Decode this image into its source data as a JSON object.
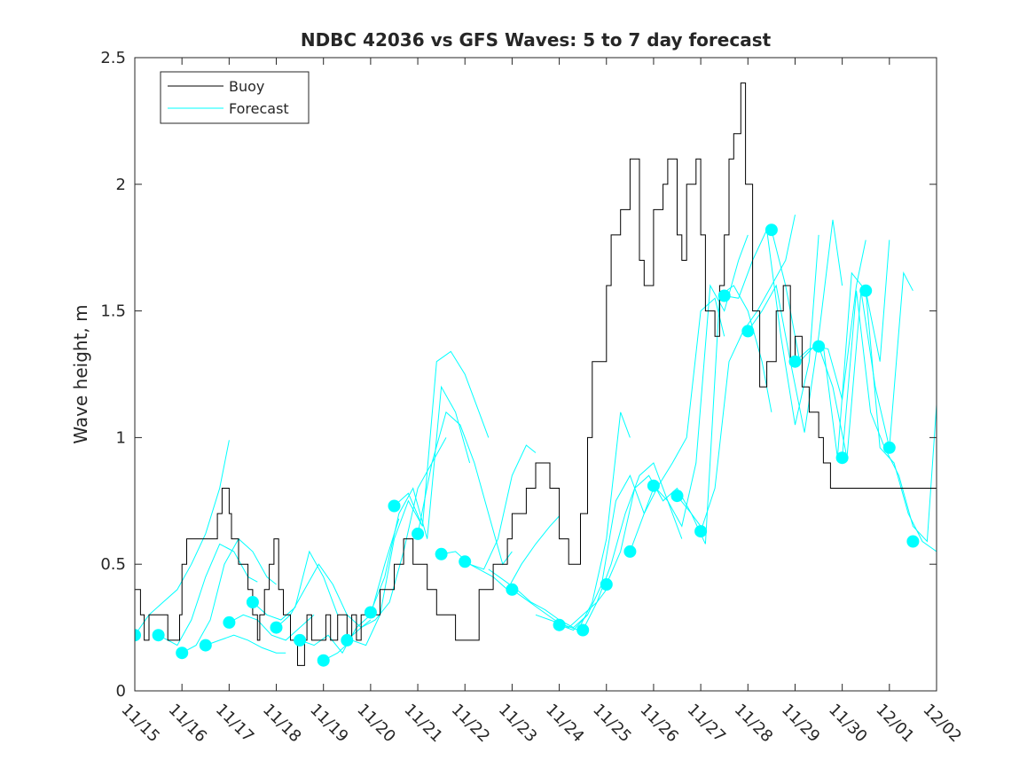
{
  "chart_data": {
    "type": "line",
    "title": "NDBC 42036 vs GFS Waves: 5 to 7 day forecast",
    "xlabel": "",
    "ylabel": "Wave height, m",
    "xlim": [
      0,
      17
    ],
    "ylim": [
      0,
      2.5
    ],
    "x_ticks": [
      0,
      1,
      2,
      3,
      4,
      5,
      6,
      7,
      8,
      9,
      10,
      11,
      12,
      13,
      14,
      15,
      16,
      17
    ],
    "x_tick_labels": [
      "11/15",
      "11/16",
      "11/17",
      "11/18",
      "11/19",
      "11/20",
      "11/21",
      "11/22",
      "11/23",
      "11/24",
      "11/25",
      "11/26",
      "11/27",
      "11/28",
      "11/29",
      "11/30",
      "12/01",
      "12/02"
    ],
    "y_ticks": [
      0,
      0.5,
      1,
      1.5,
      2,
      2.5
    ],
    "y_tick_labels": [
      "0",
      "0.5",
      "1",
      "1.5",
      "2",
      "2.5"
    ],
    "legend": [
      {
        "label": "Buoy",
        "color": "#000000"
      },
      {
        "label": "Forecast",
        "color": "#00ffff"
      }
    ],
    "legend_position": "top-left",
    "colors": {
      "buoy": "#000000",
      "forecast": "#00ffff",
      "axis": "#262626"
    },
    "series": [
      {
        "name": "Buoy",
        "style": "step",
        "x": [
          0,
          0.12,
          0.2,
          0.3,
          0.5,
          0.7,
          0.85,
          0.95,
          1,
          1.1,
          1.2,
          1.4,
          1.6,
          1.75,
          1.85,
          2.0,
          2.05,
          2.2,
          2.4,
          2.5,
          2.6,
          2.65,
          2.75,
          2.85,
          2.95,
          3.05,
          3.15,
          3.3,
          3.45,
          3.6,
          3.65,
          3.75,
          3.85,
          3.95,
          4.05,
          4.15,
          4.3,
          4.4,
          4.5,
          4.6,
          4.7,
          4.8,
          5.0,
          5.2,
          5.5,
          5.7,
          5.9,
          6.2,
          6.4,
          6.5,
          6.6,
          6.8,
          7.1,
          7.3,
          7.6,
          7.9,
          8.0,
          8.3,
          8.5,
          8.8,
          9.0,
          9.2,
          9.45,
          9.6,
          9.7,
          10.0,
          10.1,
          10.3,
          10.5,
          10.7,
          10.8,
          11.0,
          11.2,
          11.3,
          11.5,
          11.6,
          11.7,
          11.9,
          12.0,
          12.1,
          12.3,
          12.4,
          12.5,
          12.6,
          12.7,
          12.85,
          12.95,
          13.1,
          13.25,
          13.4,
          13.6,
          13.75,
          13.9,
          14.0,
          14.15,
          14.3,
          14.5,
          14.6,
          14.75,
          14.9,
          15.0,
          15.15,
          15.25,
          15.4,
          15.55,
          15.7,
          15.85,
          16.0,
          16.1,
          16.3,
          17.0
        ],
        "values": [
          0.4,
          0.3,
          0.2,
          0.3,
          0.3,
          0.2,
          0.2,
          0.3,
          0.5,
          0.6,
          0.6,
          0.6,
          0.6,
          0.7,
          0.8,
          0.7,
          0.6,
          0.5,
          0.4,
          0.3,
          0.2,
          0.3,
          0.4,
          0.5,
          0.6,
          0.4,
          0.3,
          0.2,
          0.1,
          0.2,
          0.3,
          0.2,
          0.2,
          0.2,
          0.3,
          0.2,
          0.3,
          0.3,
          0.2,
          0.3,
          0.2,
          0.3,
          0.3,
          0.4,
          0.5,
          0.6,
          0.5,
          0.4,
          0.3,
          0.3,
          0.3,
          0.2,
          0.2,
          0.4,
          0.5,
          0.6,
          0.7,
          0.8,
          0.9,
          0.8,
          0.6,
          0.5,
          0.7,
          1.0,
          1.3,
          1.6,
          1.8,
          1.9,
          2.1,
          1.7,
          1.6,
          1.9,
          2.0,
          2.1,
          1.8,
          1.7,
          2.0,
          2.1,
          1.8,
          1.5,
          1.4,
          1.6,
          1.8,
          2.1,
          2.2,
          2.4,
          2.0,
          1.5,
          1.2,
          1.3,
          1.5,
          1.6,
          1.3,
          1.4,
          1.2,
          1.1,
          1.0,
          0.9,
          0.8,
          0.8,
          0.8,
          0.8,
          0.8,
          0.8,
          0.8,
          0.8,
          0.8,
          0.8,
          0.8,
          0.8,
          0.8
        ],
        "color": "#000000"
      }
    ],
    "forecast_lines": [
      {
        "x": [
          0.0,
          0.3,
          0.6,
          0.9,
          1.2,
          1.5,
          1.8,
          2.0
        ],
        "values": [
          0.22,
          0.3,
          0.35,
          0.4,
          0.5,
          0.62,
          0.8,
          0.99
        ]
      },
      {
        "x": [
          0.5,
          0.9,
          1.2,
          1.5,
          1.8,
          2.1,
          2.4,
          2.6
        ],
        "values": [
          0.22,
          0.18,
          0.28,
          0.45,
          0.58,
          0.55,
          0.45,
          0.43
        ]
      },
      {
        "x": [
          1.0,
          1.3,
          1.6,
          1.9,
          2.2,
          2.5,
          2.8,
          3.0
        ],
        "values": [
          0.15,
          0.18,
          0.28,
          0.5,
          0.6,
          0.55,
          0.45,
          0.42
        ]
      },
      {
        "x": [
          1.5,
          1.8,
          2.1,
          2.4,
          2.7,
          3.0,
          3.2
        ],
        "values": [
          0.18,
          0.2,
          0.22,
          0.2,
          0.17,
          0.15,
          0.15
        ]
      },
      {
        "x": [
          2.0,
          2.3,
          2.6,
          2.9,
          3.2,
          3.5,
          3.8
        ],
        "values": [
          0.27,
          0.3,
          0.28,
          0.22,
          0.2,
          0.25,
          0.3
        ]
      },
      {
        "x": [
          2.5,
          2.8,
          3.1,
          3.4,
          3.7,
          4.0,
          4.3
        ],
        "values": [
          0.35,
          0.3,
          0.28,
          0.33,
          0.55,
          0.45,
          0.3
        ]
      },
      {
        "x": [
          3.0,
          3.3,
          3.6,
          3.9,
          4.2,
          4.5,
          4.8,
          5.0
        ],
        "values": [
          0.25,
          0.3,
          0.4,
          0.5,
          0.42,
          0.3,
          0.25,
          0.28
        ]
      },
      {
        "x": [
          3.5,
          3.8,
          4.1,
          4.4,
          4.7,
          5.0,
          5.3,
          5.6
        ],
        "values": [
          0.2,
          0.18,
          0.22,
          0.15,
          0.25,
          0.3,
          0.5,
          0.68
        ]
      },
      {
        "x": [
          4.0,
          4.3,
          4.6,
          4.9,
          5.2,
          5.5,
          5.8,
          6.1
        ],
        "values": [
          0.12,
          0.15,
          0.2,
          0.18,
          0.3,
          0.6,
          0.75,
          0.65
        ]
      },
      {
        "x": [
          4.5,
          4.8,
          5.1,
          5.4,
          5.7,
          6.0,
          6.3,
          6.6
        ],
        "values": [
          0.2,
          0.25,
          0.28,
          0.35,
          0.55,
          0.8,
          0.9,
          1.0
        ]
      },
      {
        "x": [
          5.0,
          5.3,
          5.6,
          5.9,
          6.2,
          6.5,
          6.8,
          7.1
        ],
        "values": [
          0.31,
          0.45,
          0.7,
          0.8,
          0.6,
          1.2,
          1.1,
          0.9
        ]
      },
      {
        "x": [
          5.5,
          5.8,
          6.1,
          6.4,
          6.7,
          7.0,
          7.3,
          7.5
        ],
        "values": [
          0.73,
          0.78,
          0.65,
          1.3,
          1.34,
          1.25,
          1.1,
          1.0
        ]
      },
      {
        "x": [
          6.0,
          6.3,
          6.6,
          6.9,
          7.2,
          7.5,
          7.8,
          8.0
        ],
        "values": [
          0.62,
          0.9,
          1.1,
          1.05,
          0.9,
          0.7,
          0.5,
          0.55
        ]
      },
      {
        "x": [
          6.5,
          6.8,
          7.1,
          7.4,
          7.7,
          8.0,
          8.3,
          8.5
        ],
        "values": [
          0.54,
          0.55,
          0.5,
          0.48,
          0.6,
          0.85,
          0.97,
          0.94
        ]
      },
      {
        "x": [
          7.0,
          7.3,
          7.6,
          7.9,
          8.2,
          8.5,
          8.8,
          9.0
        ],
        "values": [
          0.51,
          0.48,
          0.45,
          0.4,
          0.5,
          0.58,
          0.65,
          0.69
        ]
      },
      {
        "x": [
          7.5,
          7.8,
          8.1,
          8.4,
          8.7,
          9.0,
          9.3,
          9.6
        ],
        "values": [
          0.48,
          0.44,
          0.4,
          0.35,
          0.32,
          0.28,
          0.25,
          0.3
        ]
      },
      {
        "x": [
          8.0,
          8.3,
          8.6,
          8.9,
          9.2,
          9.5,
          9.8,
          10.0
        ],
        "values": [
          0.4,
          0.36,
          0.32,
          0.28,
          0.25,
          0.3,
          0.35,
          0.4
        ]
      },
      {
        "x": [
          8.5,
          8.8,
          9.1,
          9.4,
          9.7,
          10.0,
          10.3,
          10.5
        ],
        "values": [
          0.3,
          0.28,
          0.26,
          0.24,
          0.35,
          0.6,
          1.1,
          1.0
        ]
      },
      {
        "x": [
          9.0,
          9.3,
          9.6,
          9.9,
          10.2,
          10.5,
          10.8,
          11.0
        ],
        "values": [
          0.26,
          0.24,
          0.3,
          0.42,
          0.75,
          0.85,
          0.7,
          0.8
        ]
      },
      {
        "x": [
          9.5,
          9.8,
          10.1,
          10.4,
          10.7,
          11.0,
          11.3,
          11.6
        ],
        "values": [
          0.24,
          0.35,
          0.5,
          0.7,
          0.85,
          0.9,
          0.75,
          0.6
        ]
      },
      {
        "x": [
          10.0,
          10.3,
          10.6,
          10.9,
          11.2,
          11.5,
          11.8,
          12.0
        ],
        "values": [
          0.42,
          0.55,
          0.8,
          0.85,
          0.75,
          0.8,
          0.7,
          0.65
        ]
      },
      {
        "x": [
          10.5,
          10.8,
          11.1,
          11.4,
          11.7,
          12.0,
          12.3,
          12.5
        ],
        "values": [
          0.55,
          0.7,
          0.81,
          0.9,
          1.0,
          1.5,
          1.55,
          1.4
        ]
      },
      {
        "x": [
          11.0,
          11.3,
          11.6,
          11.9,
          12.2,
          12.5,
          12.8,
          13.0
        ],
        "values": [
          0.81,
          0.75,
          0.65,
          0.9,
          1.6,
          1.5,
          1.7,
          1.8
        ]
      },
      {
        "x": [
          11.5,
          11.8,
          12.1,
          12.4,
          12.7,
          13.0,
          13.3,
          13.5
        ],
        "values": [
          0.77,
          0.7,
          0.58,
          1.56,
          1.6,
          1.5,
          1.3,
          1.1
        ]
      },
      {
        "x": [
          12.0,
          12.3,
          12.6,
          12.9,
          13.2,
          13.5,
          13.8,
          14.0
        ],
        "values": [
          0.63,
          0.8,
          1.3,
          1.42,
          1.5,
          1.6,
          1.7,
          1.88
        ]
      },
      {
        "x": [
          12.5,
          12.8,
          13.1,
          13.4,
          13.7,
          14.0,
          14.3,
          14.5
        ],
        "values": [
          1.56,
          1.55,
          1.7,
          1.82,
          1.4,
          1.05,
          1.3,
          1.8
        ]
      },
      {
        "x": [
          13.0,
          13.3,
          13.6,
          13.9,
          14.2,
          14.5,
          14.8,
          15.0
        ],
        "values": [
          1.42,
          1.5,
          1.6,
          1.3,
          1.02,
          1.4,
          1.86,
          1.6
        ]
      },
      {
        "x": [
          13.5,
          13.8,
          14.1,
          14.4,
          14.7,
          15.0,
          15.3,
          15.5
        ],
        "values": [
          1.82,
          1.6,
          1.3,
          1.36,
          1.35,
          1.15,
          1.6,
          1.78
        ]
      },
      {
        "x": [
          14.0,
          14.3,
          14.6,
          14.9,
          15.2,
          15.5,
          15.8,
          16.0
        ],
        "values": [
          1.3,
          1.35,
          1.36,
          0.92,
          1.65,
          1.58,
          1.3,
          1.78
        ]
      },
      {
        "x": [
          14.5,
          14.8,
          15.1,
          15.4,
          15.7,
          16.0,
          16.3,
          16.5
        ],
        "values": [
          1.36,
          1.2,
          0.92,
          1.58,
          1.2,
          0.96,
          1.65,
          1.58
        ]
      },
      {
        "x": [
          15.0,
          15.3,
          15.6,
          15.9,
          16.2,
          16.5,
          16.8,
          17.0
        ],
        "values": [
          0.92,
          1.58,
          1.1,
          0.96,
          0.85,
          0.65,
          0.59,
          1.13
        ]
      },
      {
        "x": [
          15.5,
          15.8,
          16.1,
          16.4,
          16.7,
          17.0
        ],
        "values": [
          1.58,
          0.96,
          0.9,
          0.7,
          0.59,
          0.55
        ]
      }
    ],
    "forecast_markers": {
      "x": [
        0.0,
        0.5,
        1.0,
        1.5,
        2.0,
        2.5,
        3.0,
        3.5,
        4.0,
        4.5,
        5.0,
        5.5,
        6.0,
        6.5,
        7.0,
        8.0,
        9.0,
        9.5,
        10.0,
        10.5,
        11.0,
        11.5,
        12.0,
        12.5,
        13.0,
        13.5,
        14.0,
        14.5,
        15.0,
        15.5,
        16.0,
        16.5
      ],
      "values": [
        0.22,
        0.22,
        0.15,
        0.18,
        0.27,
        0.35,
        0.25,
        0.2,
        0.12,
        0.2,
        0.31,
        0.73,
        0.62,
        0.54,
        0.51,
        0.4,
        0.26,
        0.24,
        0.42,
        0.55,
        0.81,
        0.77,
        0.63,
        1.56,
        1.42,
        1.82,
        1.3,
        1.36,
        0.92,
        1.58,
        0.96,
        0.59
      ]
    }
  }
}
